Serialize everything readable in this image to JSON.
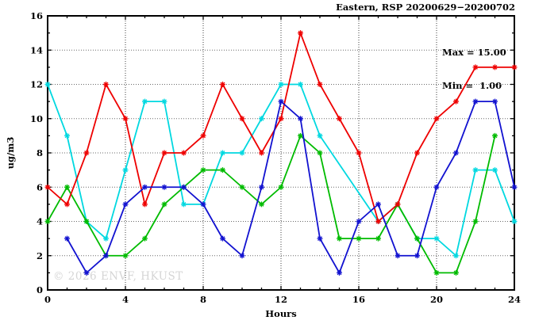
{
  "chart_data": {
    "type": "line",
    "title": "Eastern, RSP 20200629−20200702",
    "legend_lines": [
      "Max = 15.00",
      "Min =  1.00"
    ],
    "xlabel": "Hours",
    "ylabel": "ug/m3",
    "watermark": "© 2026 ENVF, HKUST",
    "xlim": [
      0,
      24
    ],
    "ylim": [
      0,
      16
    ],
    "xticks": [
      0,
      4,
      8,
      12,
      16,
      20,
      24
    ],
    "yticks": [
      0,
      2,
      4,
      6,
      8,
      10,
      12,
      14,
      16
    ],
    "grid": true,
    "legend_position": "top-right-inside",
    "x": [
      0,
      1,
      2,
      3,
      4,
      5,
      6,
      7,
      8,
      9,
      10,
      11,
      12,
      13,
      14,
      15,
      16,
      17,
      18,
      19,
      20,
      21,
      22,
      23,
      24
    ],
    "series": [
      {
        "name": "cyan-series",
        "color": "#00d8e0",
        "values": [
          12,
          9,
          4,
          3,
          7,
          11,
          11,
          5,
          5,
          8,
          8,
          10,
          12,
          12,
          9,
          null,
          null,
          4,
          5,
          3,
          3,
          2,
          7,
          7,
          4
        ]
      },
      {
        "name": "green-series",
        "color": "#00bb00",
        "values": [
          4,
          6,
          4,
          2,
          2,
          3,
          5,
          6,
          7,
          7,
          6,
          5,
          6,
          9,
          8,
          3,
          3,
          3,
          5,
          3,
          1,
          1,
          4,
          9,
          null
        ]
      },
      {
        "name": "red-series",
        "color": "#ee0000",
        "values": [
          6,
          5,
          8,
          12,
          10,
          5,
          8,
          8,
          9,
          12,
          10,
          8,
          10,
          15,
          12,
          10,
          8,
          4,
          5,
          8,
          10,
          11,
          13,
          13,
          13
        ]
      },
      {
        "name": "blue-series",
        "color": "#1212d0",
        "values": [
          null,
          3,
          1,
          2,
          5,
          6,
          6,
          6,
          5,
          3,
          2,
          6,
          11,
          10,
          3,
          1,
          4,
          5,
          2,
          2,
          6,
          8,
          11,
          11,
          6
        ]
      }
    ]
  }
}
